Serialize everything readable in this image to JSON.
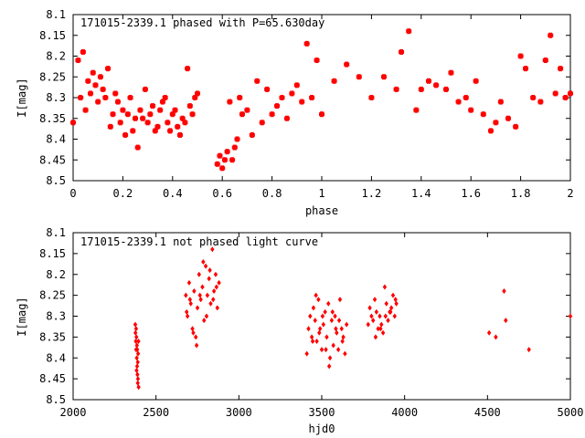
{
  "chart_data": [
    {
      "type": "scatter",
      "title": "171015-2339.1 phased with P=65.630day",
      "xlabel": "phase",
      "ylabel": "I[mag]",
      "xlim": [
        0,
        2
      ],
      "ylim": [
        8.1,
        8.5
      ],
      "y_inverted": true,
      "x_ticks": [
        "0",
        "0.2",
        "0.4",
        "0.6",
        "0.8",
        "1",
        "1.2",
        "1.4",
        "1.6",
        "1.8",
        "2"
      ],
      "y_ticks": [
        "8.1",
        "8.15",
        "8.2",
        "8.25",
        "8.3",
        "8.35",
        "8.4",
        "8.45",
        "8.5"
      ],
      "marker_color": "#ff0000",
      "series": [
        {
          "x": [
            0.0,
            0.02,
            0.03,
            0.04,
            0.05,
            0.06,
            0.07,
            0.08,
            0.09,
            0.1,
            0.11,
            0.12,
            0.13,
            0.14,
            0.15,
            0.16,
            0.17,
            0.18,
            0.19,
            0.2,
            0.21,
            0.22,
            0.23,
            0.24,
            0.25,
            0.26,
            0.27,
            0.28,
            0.29,
            0.3,
            0.31,
            0.32,
            0.33,
            0.34,
            0.35,
            0.36,
            0.37,
            0.38,
            0.39,
            0.4,
            0.41,
            0.42,
            0.43,
            0.44,
            0.45,
            0.46,
            0.47,
            0.48,
            0.49,
            0.5,
            0.58,
            0.59,
            0.6,
            0.61,
            0.62,
            0.63,
            0.64,
            0.65,
            0.66,
            0.67,
            0.68,
            0.7,
            0.72,
            0.74,
            0.76,
            0.78,
            0.8,
            0.82,
            0.84,
            0.86,
            0.88,
            0.9,
            0.92,
            0.94,
            0.96,
            0.98,
            1.0,
            1.05,
            1.1,
            1.15,
            1.2,
            1.25,
            1.3,
            1.32,
            1.35,
            1.38,
            1.4,
            1.43,
            1.46,
            1.5,
            1.52,
            1.55,
            1.58,
            1.6,
            1.62,
            1.65,
            1.68,
            1.7,
            1.72,
            1.75,
            1.78,
            1.8,
            1.82,
            1.85,
            1.88,
            1.9,
            1.92,
            1.94,
            1.96,
            1.98,
            2.0
          ],
          "y": [
            8.36,
            8.21,
            8.3,
            8.19,
            8.33,
            8.26,
            8.29,
            8.24,
            8.27,
            8.31,
            8.25,
            8.28,
            8.3,
            8.23,
            8.37,
            8.34,
            8.29,
            8.31,
            8.36,
            8.33,
            8.39,
            8.34,
            8.3,
            8.38,
            8.35,
            8.42,
            8.33,
            8.35,
            8.28,
            8.36,
            8.34,
            8.32,
            8.38,
            8.37,
            8.33,
            8.31,
            8.3,
            8.36,
            8.38,
            8.34,
            8.33,
            8.37,
            8.39,
            8.35,
            8.36,
            8.23,
            8.32,
            8.34,
            8.3,
            8.29,
            8.46,
            8.44,
            8.47,
            8.45,
            8.43,
            8.31,
            8.45,
            8.42,
            8.4,
            8.3,
            8.34,
            8.33,
            8.39,
            8.26,
            8.36,
            8.28,
            8.34,
            8.32,
            8.3,
            8.35,
            8.29,
            8.27,
            8.31,
            8.17,
            8.3,
            8.21,
            8.34,
            8.26,
            8.22,
            8.25,
            8.3,
            8.25,
            8.28,
            8.19,
            8.14,
            8.33,
            8.28,
            8.26,
            8.27,
            8.28,
            8.24,
            8.31,
            8.3,
            8.33,
            8.26,
            8.34,
            8.38,
            8.36,
            8.31,
            8.35,
            8.37,
            8.2,
            8.23,
            8.3,
            8.31,
            8.21,
            8.15,
            8.29,
            8.23,
            8.3,
            8.29
          ]
        }
      ]
    },
    {
      "type": "scatter",
      "title": "171015-2339.1 not phased light curve",
      "xlabel": "hjd0",
      "ylabel": "I[mag]",
      "xlim": [
        2000,
        5000
      ],
      "ylim": [
        8.1,
        8.5
      ],
      "y_inverted": true,
      "x_ticks": [
        "2000",
        "2500",
        "3000",
        "3500",
        "4000",
        "4500",
        "5000"
      ],
      "y_ticks": [
        "8.1",
        "8.15",
        "8.2",
        "8.25",
        "8.3",
        "8.35",
        "8.4",
        "8.45",
        "8.5"
      ],
      "marker_color": "#ff0000",
      "series": [
        {
          "x": [
            2375,
            2378,
            2380,
            2382,
            2384,
            2386,
            2388,
            2390,
            2392,
            2395,
            2380,
            2385,
            2390,
            2376,
            2383,
            2387,
            2391,
            2394,
            2680,
            2690,
            2700,
            2710,
            2720,
            2730,
            2740,
            2750,
            2760,
            2770,
            2780,
            2790,
            2800,
            2810,
            2820,
            2830,
            2840,
            2850,
            2860,
            2870,
            2880,
            2685,
            2705,
            2725,
            2745,
            2765,
            2785,
            2805,
            2825,
            2845,
            2865,
            3410,
            3420,
            3430,
            3440,
            3450,
            3460,
            3470,
            3480,
            3490,
            3500,
            3510,
            3520,
            3530,
            3540,
            3550,
            3560,
            3570,
            3580,
            3590,
            3600,
            3610,
            3620,
            3630,
            3640,
            3650,
            3445,
            3465,
            3485,
            3505,
            3525,
            3545,
            3565,
            3585,
            3605,
            3625,
            3780,
            3790,
            3800,
            3810,
            3820,
            3830,
            3840,
            3850,
            3860,
            3870,
            3880,
            3890,
            3900,
            3910,
            3920,
            3930,
            3940,
            3950,
            3825,
            3855,
            3885,
            3915,
            3945,
            4510,
            4550,
            4600,
            4610,
            4750,
            5000
          ],
          "y": [
            8.32,
            8.36,
            8.38,
            8.35,
            8.4,
            8.42,
            8.44,
            8.46,
            8.39,
            8.47,
            8.33,
            8.37,
            8.41,
            8.34,
            8.43,
            8.38,
            8.45,
            8.36,
            8.25,
            8.3,
            8.22,
            8.27,
            8.33,
            8.24,
            8.35,
            8.28,
            8.2,
            8.26,
            8.23,
            8.31,
            8.18,
            8.25,
            8.21,
            8.27,
            8.14,
            8.24,
            8.2,
            8.28,
            8.22,
            8.29,
            8.26,
            8.34,
            8.37,
            8.25,
            8.17,
            8.3,
            8.19,
            8.26,
            8.23,
            8.39,
            8.33,
            8.3,
            8.35,
            8.28,
            8.31,
            8.36,
            8.26,
            8.33,
            8.38,
            8.32,
            8.29,
            8.35,
            8.27,
            8.4,
            8.31,
            8.37,
            8.3,
            8.34,
            8.38,
            8.26,
            8.33,
            8.35,
            8.39,
            8.32,
            8.36,
            8.25,
            8.34,
            8.3,
            8.38,
            8.42,
            8.29,
            8.33,
            8.31,
            8.36,
            8.32,
            8.28,
            8.3,
            8.31,
            8.26,
            8.29,
            8.33,
            8.3,
            8.32,
            8.34,
            8.23,
            8.27,
            8.31,
            8.29,
            8.28,
            8.25,
            8.3,
            8.27,
            8.35,
            8.33,
            8.3,
            8.29,
            8.26,
            8.34,
            8.35,
            8.24,
            8.31,
            8.38,
            8.3
          ]
        }
      ]
    }
  ]
}
